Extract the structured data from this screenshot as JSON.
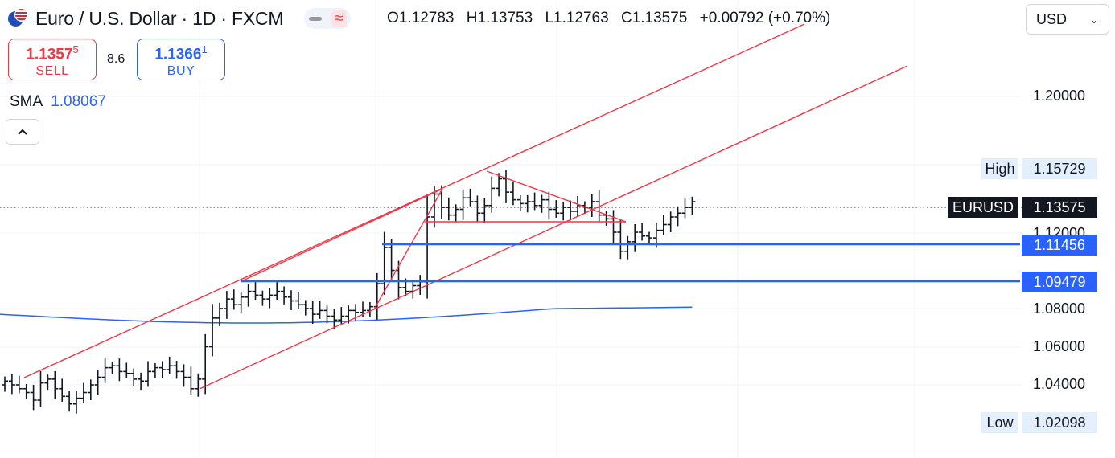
{
  "header": {
    "title": "Euro / U.S. Dollar · 1D · FXCM",
    "ohlc": {
      "open": "O1.12783",
      "high": "H1.13753",
      "low": "L1.12763",
      "close": "C1.13575",
      "change": "+0.00792 (+0.70%)"
    },
    "currency": "USD"
  },
  "trade": {
    "sell_price": "1.1357",
    "sell_sup": "5",
    "sell_label": "SELL",
    "spread": "8.6",
    "buy_price": "1.1366",
    "buy_sup": "1",
    "buy_label": "BUY"
  },
  "indicator": {
    "name": "SMA",
    "value": "1.08067"
  },
  "colors": {
    "up_down_bars": "#131722",
    "sma": "#2962ff",
    "drawings": "#f23645",
    "levels": "#2962ff"
  },
  "axis": {
    "ticks": [
      "1.20000",
      "1.12000",
      "1.08000",
      "1.06000",
      "1.04000"
    ],
    "high_label": "High",
    "high_value": "1.15729",
    "symbol_label": "EURUSD",
    "last_value": "1.13575",
    "level1": "1.11456",
    "level2": "1.09479",
    "low_label": "Low",
    "low_value": "1.02098"
  },
  "chart_data": {
    "type": "ohlc",
    "symbol": "EURUSD",
    "ylim": [
      1.0,
      1.225
    ],
    "y_ticks": [
      1.04,
      1.06,
      1.08,
      1.12,
      1.2
    ],
    "grid": true,
    "close_series": [
      1.042,
      1.04,
      1.038,
      1.036,
      1.032,
      1.041,
      1.043,
      1.038,
      1.034,
      1.03,
      1.033,
      1.036,
      1.04,
      1.044,
      1.049,
      1.05,
      1.047,
      1.046,
      1.043,
      1.042,
      1.047,
      1.049,
      1.048,
      1.05,
      1.047,
      1.044,
      1.038,
      1.043,
      1.06,
      1.075,
      1.08,
      1.085,
      1.082,
      1.086,
      1.089,
      1.087,
      1.085,
      1.087,
      1.089,
      1.086,
      1.084,
      1.082,
      1.08,
      1.077,
      1.079,
      1.076,
      1.074,
      1.076,
      1.079,
      1.078,
      1.079,
      1.081,
      1.093,
      1.112,
      1.1,
      1.091,
      1.089,
      1.092,
      1.094,
      1.128,
      1.14,
      1.133,
      1.129,
      1.132,
      1.138,
      1.136,
      1.13,
      1.134,
      1.143,
      1.148,
      1.141,
      1.137,
      1.135,
      1.136,
      1.134,
      1.137,
      1.132,
      1.13,
      1.133,
      1.131,
      1.134,
      1.133,
      1.136,
      1.129,
      1.127,
      1.12,
      1.11,
      1.115,
      1.12,
      1.118,
      1.117,
      1.121,
      1.124,
      1.128,
      1.13,
      1.133,
      1.136
    ],
    "sma_start": 1.077,
    "sma_min": 1.071,
    "sma_end": 1.0807,
    "horizontal_levels": [
      1.11456,
      1.09479
    ],
    "last_price": 1.13575,
    "high": 1.15729,
    "low": 1.02098
  }
}
